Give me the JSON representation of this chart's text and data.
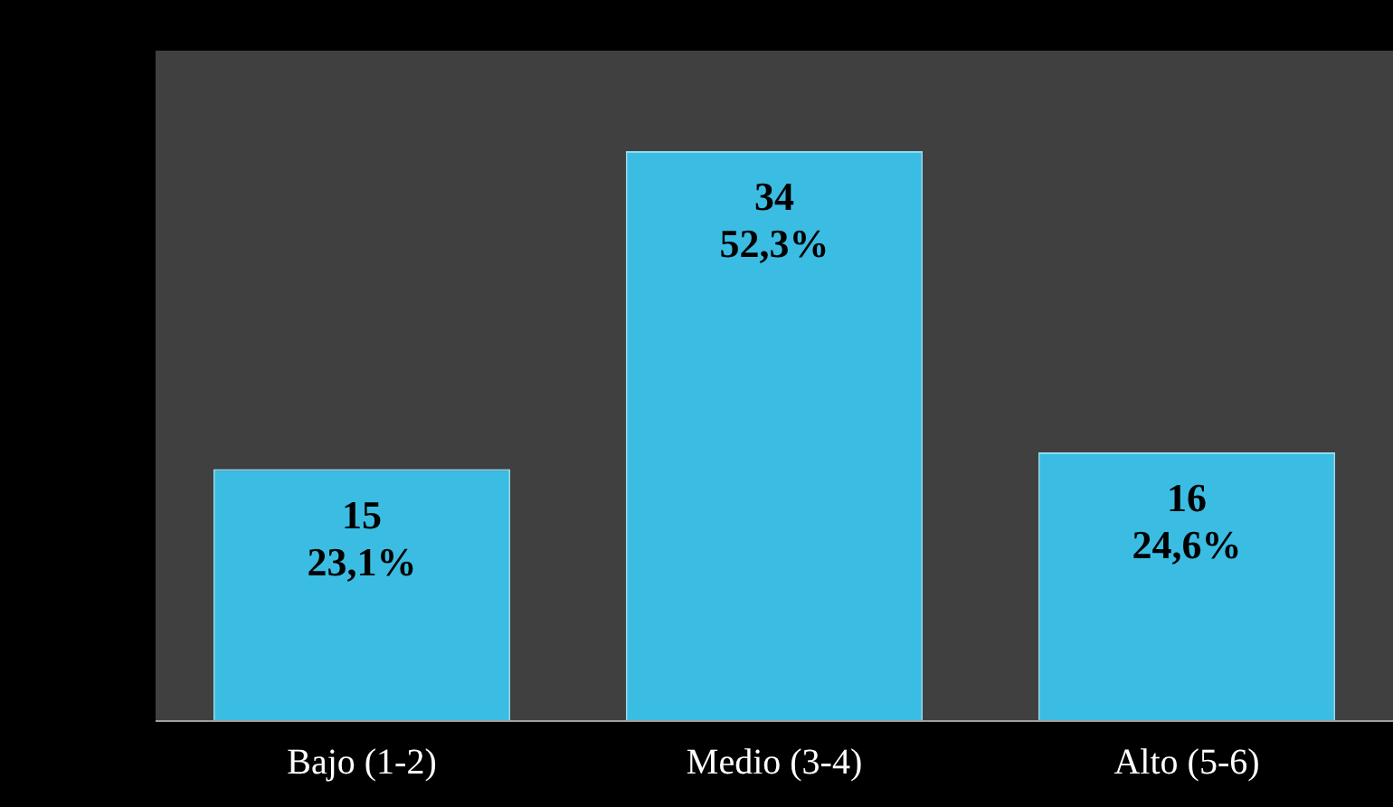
{
  "chart_data": {
    "type": "bar",
    "categories": [
      "Bajo (1-2)",
      "Medio (3-4)",
      "Alto (5-6)"
    ],
    "values": [
      15,
      34,
      16
    ],
    "value_labels": [
      "15\n23,1%",
      "34\n52,3%",
      "16\n24,6%"
    ],
    "color": "#3bbde3",
    "ylim": [
      0,
      40
    ],
    "tick_labels": "x",
    "grid": false,
    "legend": false
  }
}
